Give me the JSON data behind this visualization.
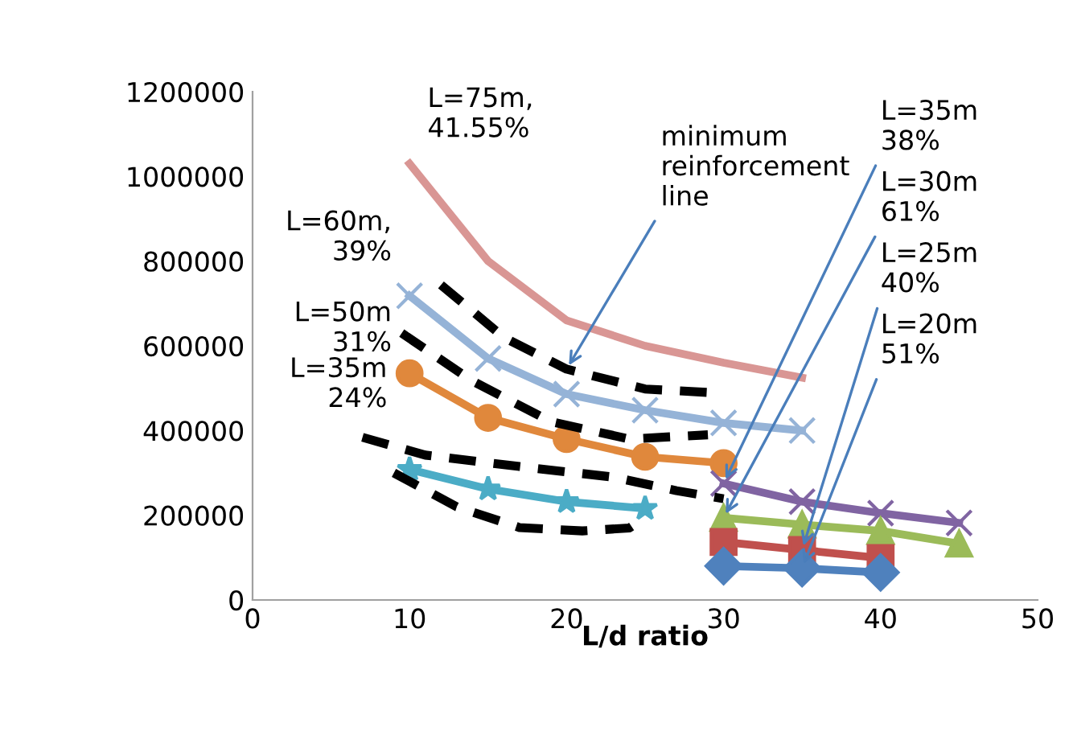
{
  "chart_data": {
    "type": "line",
    "xlabel": "L/d ratio",
    "xlim": [
      0,
      50
    ],
    "xticks": [
      0,
      10,
      20,
      30,
      40,
      50
    ],
    "ylim": [
      0,
      1200000
    ],
    "yticks": [
      0,
      200000,
      400000,
      600000,
      800000,
      1000000,
      1200000
    ],
    "grid": false,
    "legend": false,
    "series": [
      {
        "color": "#d99694",
        "marker": "none",
        "x": [
          10,
          15,
          20,
          25,
          30,
          35
        ],
        "values": [
          1030000,
          800000,
          660000,
          600000,
          560000,
          525000
        ]
      },
      {
        "color": "#95b3d7",
        "marker": "cross",
        "x": [
          10,
          15,
          20,
          25,
          30,
          35
        ],
        "values": [
          718000,
          570000,
          486000,
          448000,
          418000,
          400000
        ]
      },
      {
        "color": "#e0883c",
        "marker": "circle",
        "x": [
          10,
          15,
          20,
          25,
          30
        ],
        "values": [
          535000,
          430000,
          380000,
          338000,
          323000
        ]
      },
      {
        "color": "#4bacc6",
        "marker": "star",
        "x": [
          10,
          15,
          20,
          25
        ],
        "values": [
          308000,
          262000,
          232000,
          216000
        ]
      },
      {
        "color": "#8064a2",
        "marker": "cross",
        "x": [
          30,
          35,
          40,
          45
        ],
        "values": [
          275000,
          232000,
          205000,
          182000
        ]
      },
      {
        "color": "#9bbb59",
        "marker": "triangle",
        "x": [
          30,
          35,
          40,
          45
        ],
        "values": [
          194000,
          178000,
          163000,
          133000
        ]
      },
      {
        "color": "#c0504d",
        "marker": "square",
        "x": [
          30,
          35,
          40
        ],
        "values": [
          137000,
          118000,
          99000
        ]
      },
      {
        "color": "#4f81bd",
        "marker": "diamond",
        "x": [
          30,
          35,
          40
        ],
        "values": [
          80000,
          75000,
          65000
        ]
      },
      {
        "color": "#000000",
        "marker": "none",
        "line_style": "dashed",
        "x": [
          12,
          16,
          20,
          25,
          29
        ],
        "values": [
          744000,
          620000,
          545000,
          498000,
          490000
        ]
      },
      {
        "color": "#000000",
        "marker": "none",
        "line_style": "dashed",
        "x": [
          9.5,
          14,
          19,
          24,
          29
        ],
        "values": [
          630000,
          517000,
          421000,
          380000,
          390000
        ]
      },
      {
        "color": "#000000",
        "marker": "none",
        "line_style": "dashed",
        "x": [
          7,
          11,
          17,
          23,
          27,
          30
        ],
        "values": [
          384000,
          342000,
          315000,
          290000,
          258000,
          239000
        ]
      },
      {
        "color": "#000000",
        "marker": "none",
        "line_style": "dashed",
        "x": [
          9,
          13,
          17,
          21,
          24,
          25
        ],
        "values": [
          300000,
          220000,
          171000,
          163000,
          170000,
          195000
        ]
      }
    ],
    "annotations": [
      {
        "text": "L=75m, 41.55%",
        "x": 10,
        "y": 1030000
      },
      {
        "text": "L=60m, 39%",
        "x": 10,
        "y": 718000
      },
      {
        "text": "L=50m 31%",
        "x": 10,
        "y": 535000
      },
      {
        "text": "L=35m 24%",
        "x": 10,
        "y": 308000
      },
      {
        "text": "minimum reinforcement line",
        "x": 20,
        "y": 545000
      },
      {
        "text": "L=35m 38%",
        "x": 30,
        "y": 275000
      },
      {
        "text": "L=30m 61%",
        "x": 30,
        "y": 194000
      },
      {
        "text": "L=25m 40%",
        "x": 35,
        "y": 118000
      },
      {
        "text": "L=20m 51%",
        "x": 35,
        "y": 75000
      }
    ]
  }
}
